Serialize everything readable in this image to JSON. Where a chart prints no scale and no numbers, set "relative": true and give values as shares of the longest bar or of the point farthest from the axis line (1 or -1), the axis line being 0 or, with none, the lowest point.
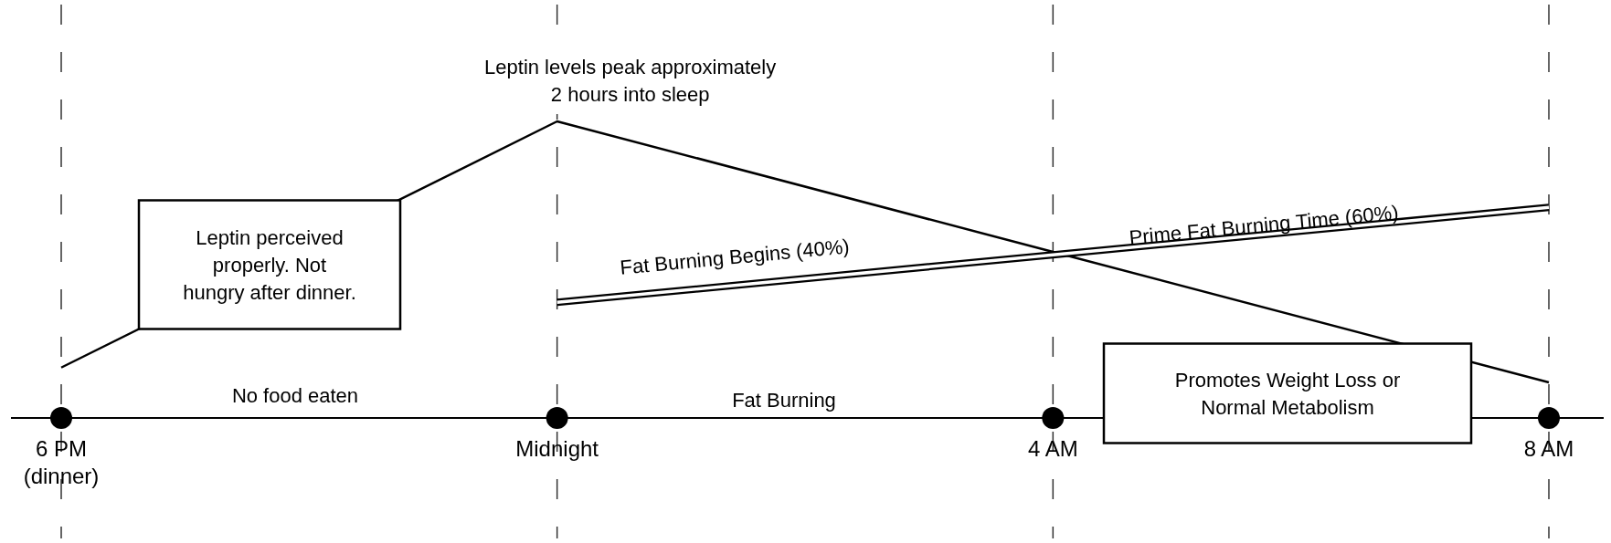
{
  "chart_data": {
    "type": "line",
    "relative": true,
    "categories": [
      "6 PM\n(dinner)",
      "Midnight",
      "4 AM",
      "8 AM"
    ],
    "series": [
      {
        "color": "#000000",
        "values": [
          0.17,
          1,
          0.56,
          0.12
        ]
      },
      {
        "color": "#000000",
        "values": [
          null,
          0.39,
          0.55,
          0.71
        ]
      }
    ],
    "annotations": [
      {
        "text": "Leptin levels peak approximately\n2 hours into sleep",
        "x": "Midnight",
        "y": 1
      },
      "Leptin perceived\nproperly.  Not\nhungry after dinner.",
      "No food eaten",
      "Fat Burning",
      "Fat Burning Begins (40%)",
      "Prime Fat Burning Time (60%)",
      "Promotes Weight Loss or\nNormal Metabolism"
    ],
    "grid": "x",
    "marker": "none",
    "line_style": "solid"
  }
}
